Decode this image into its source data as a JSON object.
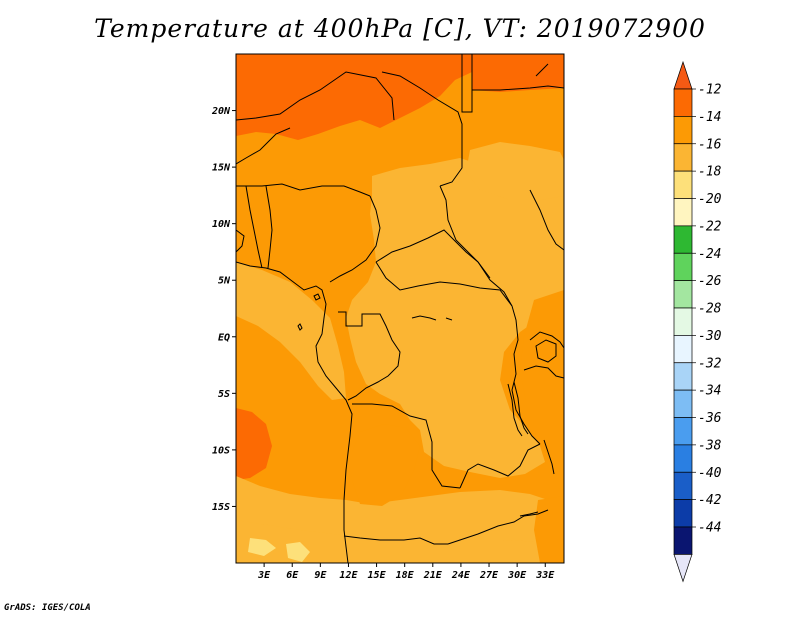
{
  "title": "Temperature at 400hPa [C], VT: 2019072900",
  "credit": "GrADS: IGES/COLA",
  "map": {
    "domain": {
      "lon_min": 0,
      "lon_max": 35,
      "lat_min": -20,
      "lat_max": 25
    },
    "lat_ticks": [
      {
        "lat": 20,
        "label": "20N"
      },
      {
        "lat": 15,
        "label": "15N"
      },
      {
        "lat": 10,
        "label": "10N"
      },
      {
        "lat": 5,
        "label": "5N"
      },
      {
        "lat": 0,
        "label": "EQ"
      },
      {
        "lat": -5,
        "label": "5S"
      },
      {
        "lat": -10,
        "label": "10S"
      },
      {
        "lat": -15,
        "label": "15S"
      }
    ],
    "lon_ticks": [
      {
        "lon": 3,
        "label": "3E"
      },
      {
        "lon": 6,
        "label": "6E"
      },
      {
        "lon": 9,
        "label": "9E"
      },
      {
        "lon": 12,
        "label": "12E"
      },
      {
        "lon": 15,
        "label": "15E"
      },
      {
        "lon": 18,
        "label": "18E"
      },
      {
        "lon": 21,
        "label": "21E"
      },
      {
        "lon": 24,
        "label": "24E"
      },
      {
        "lon": 27,
        "label": "27E"
      },
      {
        "lon": 30,
        "label": "30E"
      },
      {
        "lon": 33,
        "label": "33E"
      }
    ]
  },
  "colorbar": {
    "labels": [
      "-12",
      "-14",
      "-16",
      "-18",
      "-20",
      "-22",
      "-24",
      "-26",
      "-28",
      "-30",
      "-32",
      "-34",
      "-36",
      "-38",
      "-40",
      "-42",
      "-44"
    ],
    "colors": [
      "#f55a14",
      "#fc6a03",
      "#fc9a05",
      "#fbb533",
      "#fde07a",
      "#fff5c0",
      "#2eb832",
      "#5fd35c",
      "#a3e6a0",
      "#e4f9e4",
      "#e8f5ff",
      "#a9d4f7",
      "#7dbdf4",
      "#4a9def",
      "#2a7fe2",
      "#1a5ec8",
      "#0c3ca8",
      "#0a1570",
      "#e6e6f8"
    ]
  }
}
